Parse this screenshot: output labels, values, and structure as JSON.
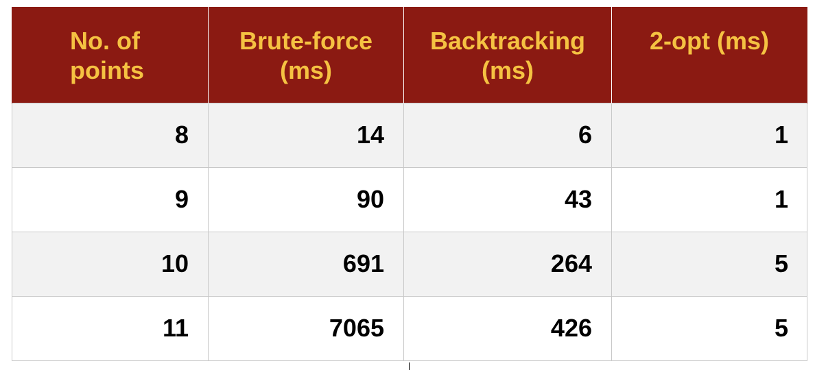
{
  "chart_data": {
    "type": "table",
    "columns": [
      "No. of points",
      "Brute-force (ms)",
      "Backtracking (ms)",
      "2-opt (ms)"
    ],
    "header_lines": [
      [
        "No. of",
        "points"
      ],
      [
        "Brute-force",
        "(ms)"
      ],
      [
        "Backtracking",
        "(ms)"
      ],
      [
        "2-opt (ms)"
      ]
    ],
    "rows": [
      [
        "8",
        "14",
        "6",
        "1"
      ],
      [
        "9",
        "90",
        "43",
        "1"
      ],
      [
        "10",
        "691",
        "264",
        "5"
      ],
      [
        "11",
        "7065",
        "426",
        "5"
      ]
    ]
  },
  "colors": {
    "header_bg": "#8b1a12",
    "header_text": "#f5c242",
    "row_alt_bg": "#f2f2f2",
    "row_bg": "#ffffff"
  }
}
